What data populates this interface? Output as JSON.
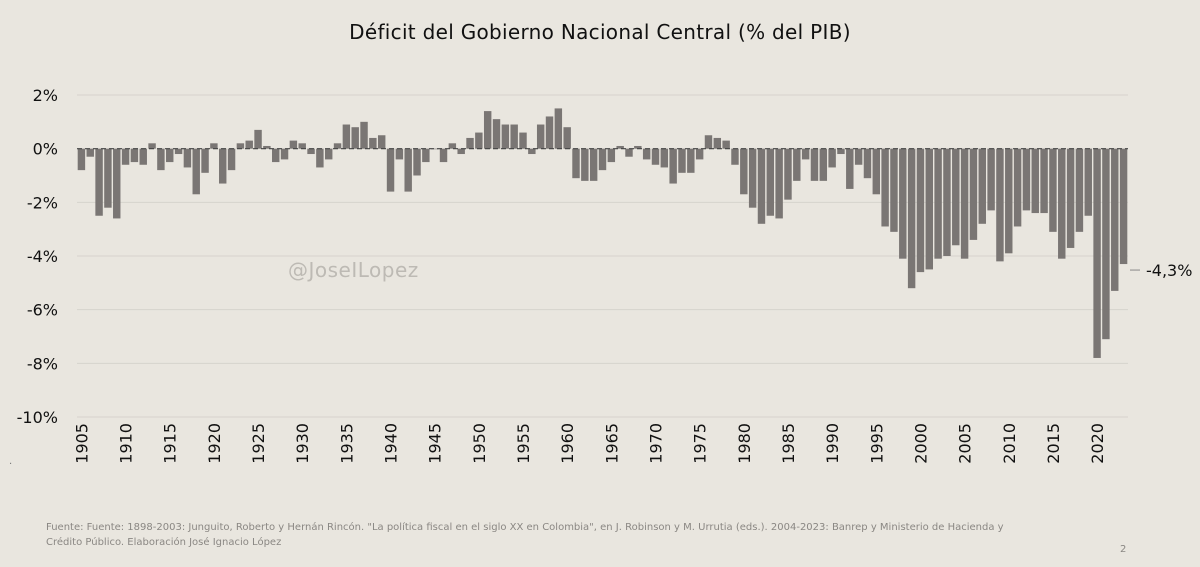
{
  "title": "Déficit del Gobierno Nacional Central (% del PIB)",
  "watermark": "@JoseILopez",
  "side_mark": ".",
  "footnote_line1": "Fuente: Fuente: 1898-2003: Junguito, Roberto y Hernán Rincón. \"La política fiscal en el siglo XX en Colombia\", en J. Robinson y M. Urrutia (eds.). 2004-2023: Banrep y Ministerio de Hacienda y",
  "footnote_line2": "Crédito Público. Elaboración José Ignacio López",
  "page_number": "2",
  "colors": {
    "bar": "#7a7674",
    "background": "#e9e6df",
    "grid": "#d6d3cd",
    "zero_line": "#444444"
  },
  "chart_data": {
    "type": "bar",
    "title": "Déficit del Gobierno Nacional Central (% del PIB)",
    "xlabel": "",
    "ylabel": "",
    "ylim": [
      -10,
      2
    ],
    "yticks": [
      2,
      0,
      -2,
      -4,
      -6,
      -8,
      -10
    ],
    "ytick_labels": [
      "2%",
      "0%",
      "-2%",
      "-4%",
      "-6%",
      "-8%",
      "-10%"
    ],
    "xticks": [
      1905,
      1910,
      1915,
      1920,
      1925,
      1930,
      1935,
      1940,
      1945,
      1950,
      1955,
      1960,
      1965,
      1970,
      1975,
      1980,
      1985,
      1990,
      1995,
      2000,
      2005,
      2010,
      2015,
      2020
    ],
    "grid": "horizontal",
    "reference_line": 0,
    "annotation": {
      "year": 2023,
      "value": -4.3,
      "label": "-4,3%"
    },
    "years": [
      1905,
      1906,
      1907,
      1908,
      1909,
      1910,
      1911,
      1912,
      1913,
      1914,
      1915,
      1916,
      1917,
      1918,
      1919,
      1920,
      1921,
      1922,
      1923,
      1924,
      1925,
      1926,
      1927,
      1928,
      1929,
      1930,
      1931,
      1932,
      1933,
      1934,
      1935,
      1936,
      1937,
      1938,
      1939,
      1940,
      1941,
      1942,
      1943,
      1944,
      1945,
      1946,
      1947,
      1948,
      1949,
      1950,
      1951,
      1952,
      1953,
      1954,
      1955,
      1956,
      1957,
      1958,
      1959,
      1960,
      1961,
      1962,
      1963,
      1964,
      1965,
      1966,
      1967,
      1968,
      1969,
      1970,
      1971,
      1972,
      1973,
      1974,
      1975,
      1976,
      1977,
      1978,
      1979,
      1980,
      1981,
      1982,
      1983,
      1984,
      1985,
      1986,
      1987,
      1988,
      1989,
      1990,
      1991,
      1992,
      1993,
      1994,
      1995,
      1996,
      1997,
      1998,
      1999,
      2000,
      2001,
      2002,
      2003,
      2004,
      2005,
      2006,
      2007,
      2008,
      2009,
      2010,
      2011,
      2012,
      2013,
      2014,
      2015,
      2016,
      2017,
      2018,
      2019,
      2020,
      2021,
      2022,
      2023
    ],
    "values": [
      -0.8,
      -0.3,
      -2.5,
      -2.2,
      -2.6,
      -0.6,
      -0.5,
      -0.6,
      0.2,
      -0.8,
      -0.5,
      -0.2,
      -0.7,
      -1.7,
      -0.9,
      0.2,
      -1.3,
      -0.8,
      0.2,
      0.3,
      0.7,
      0.1,
      -0.5,
      -0.4,
      0.3,
      0.2,
      -0.2,
      -0.7,
      -0.4,
      0.2,
      0.9,
      0.8,
      1.0,
      0.4,
      0.5,
      -1.6,
      -0.4,
      -1.6,
      -1.0,
      -0.5,
      0.0,
      -0.5,
      0.2,
      -0.2,
      0.4,
      0.6,
      1.4,
      1.1,
      0.9,
      0.9,
      0.6,
      -0.2,
      0.9,
      1.2,
      1.5,
      0.8,
      -1.1,
      -1.2,
      -1.2,
      -0.8,
      -0.5,
      0.1,
      -0.3,
      0.1,
      -0.4,
      -0.6,
      -0.7,
      -1.3,
      -0.9,
      -0.9,
      -0.4,
      0.5,
      0.4,
      0.3,
      -0.6,
      -1.7,
      -2.2,
      -2.8,
      -2.5,
      -2.6,
      -1.9,
      -1.2,
      -0.4,
      -1.2,
      -1.2,
      -0.7,
      -0.2,
      -1.5,
      -0.6,
      -1.1,
      -1.7,
      -2.9,
      -3.1,
      -4.1,
      -5.2,
      -4.6,
      -4.5,
      -4.1,
      -4.0,
      -3.6,
      -4.1,
      -3.4,
      -2.8,
      -2.3,
      -4.2,
      -3.9,
      -2.9,
      -2.3,
      -2.4,
      -2.4,
      -3.1,
      -4.1,
      -3.7,
      -3.1,
      -2.5,
      -7.8,
      -7.1,
      -5.3,
      -4.3
    ]
  }
}
